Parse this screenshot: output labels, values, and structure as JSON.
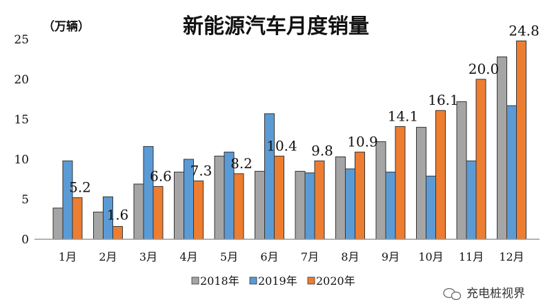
{
  "chart_data": {
    "type": "bar",
    "title": "新能源汽车月度销量",
    "ylabel": "（万辆）",
    "xlabel": "",
    "ylim": [
      0,
      25
    ],
    "yticks": [
      0,
      5,
      10,
      15,
      20,
      25
    ],
    "categories": [
      "1月",
      "2月",
      "3月",
      "4月",
      "5月",
      "6月",
      "7月",
      "8月",
      "9月",
      "10月",
      "11月",
      "12月"
    ],
    "series": [
      {
        "name": "2018年",
        "color": "#a5a5a5",
        "values": [
          3.9,
          3.4,
          6.9,
          8.4,
          10.4,
          8.5,
          8.5,
          10.3,
          12.2,
          14.0,
          17.2,
          22.8
        ]
      },
      {
        "name": "2019年",
        "color": "#5b9bd5",
        "values": [
          9.8,
          5.3,
          11.6,
          10.0,
          10.9,
          15.7,
          8.3,
          8.8,
          8.4,
          7.9,
          9.8,
          16.7
        ]
      },
      {
        "name": "2020年",
        "color": "#ed7d31",
        "values": [
          5.2,
          1.6,
          6.6,
          7.3,
          8.2,
          10.4,
          9.8,
          10.9,
          14.1,
          16.1,
          20.0,
          24.8
        ]
      }
    ],
    "data_labels": [
      "5.2",
      "1.6",
      "6.6",
      "7.3",
      "8.2",
      "10.4",
      "9.8",
      "10.9",
      "14.1",
      "16.1",
      "20.0",
      "24.8"
    ],
    "legend": "bottom",
    "grid": false
  },
  "watermark": "充电桩视界"
}
